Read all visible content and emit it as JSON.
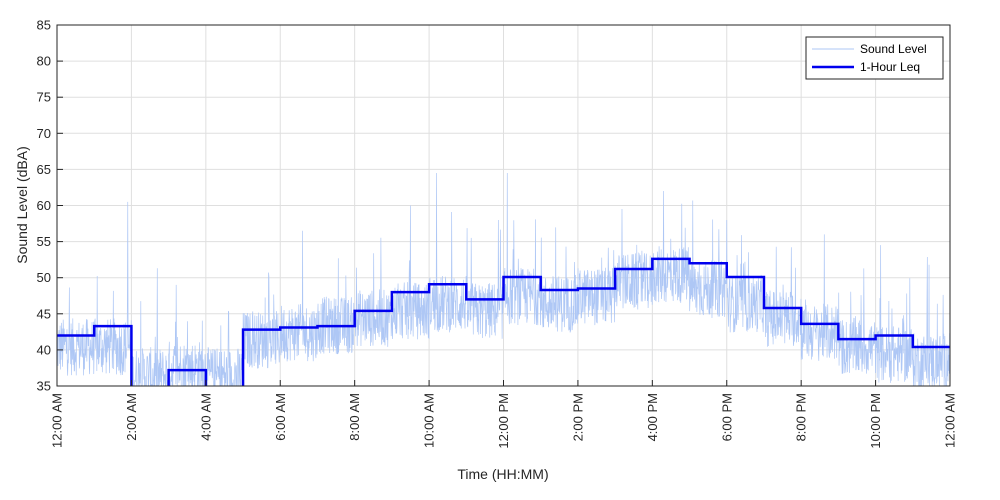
{
  "chart_data": {
    "type": "line",
    "xlabel": "Time (HH:MM)",
    "ylabel": "Sound Level (dBA)",
    "xlim": [
      0,
      24
    ],
    "ylim": [
      35,
      85
    ],
    "yticks": [
      35,
      40,
      45,
      50,
      55,
      60,
      65,
      70,
      75,
      80,
      85
    ],
    "xticks": [
      0,
      2,
      4,
      6,
      8,
      10,
      12,
      14,
      16,
      18,
      20,
      22,
      24
    ],
    "xtick_labels": [
      "12:00 AM",
      "2:00 AM",
      "4:00 AM",
      "6:00 AM",
      "8:00 AM",
      "10:00 AM",
      "12:00 PM",
      "2:00 PM",
      "4:00 PM",
      "6:00 PM",
      "8:00 PM",
      "10:00 PM",
      "12:00 AM"
    ],
    "grid": true,
    "legend_position": "top-right",
    "series": [
      {
        "name": "Sound Level",
        "color": "#aec7f5",
        "style": "thin-line",
        "hourly_baseline": [
          40,
          40,
          36,
          37,
          36,
          41,
          42,
          43,
          44,
          45,
          46,
          45,
          47,
          46,
          47,
          49,
          50,
          48,
          46,
          44,
          42,
          40,
          39,
          38
        ],
        "peaks": [
          {
            "x": 1.9,
            "y": 60.5
          },
          {
            "x": 3.2,
            "y": 49
          },
          {
            "x": 6.6,
            "y": 56.5
          },
          {
            "x": 9.5,
            "y": 60
          },
          {
            "x": 10.2,
            "y": 64.5
          },
          {
            "x": 12.1,
            "y": 64.5
          },
          {
            "x": 16.3,
            "y": 62
          },
          {
            "x": 18.0,
            "y": 58
          }
        ]
      },
      {
        "name": "1-Hour Leq",
        "color": "#0000ee",
        "style": "step",
        "hourly_values": [
          42,
          43.3,
          33,
          37.2,
          33,
          42.8,
          43.1,
          43.3,
          45.4,
          48,
          49.1,
          47,
          50.1,
          48.3,
          48.5,
          51.2,
          52.6,
          52,
          50.1,
          45.8,
          43.6,
          41.5,
          42,
          40.4
        ]
      }
    ]
  }
}
